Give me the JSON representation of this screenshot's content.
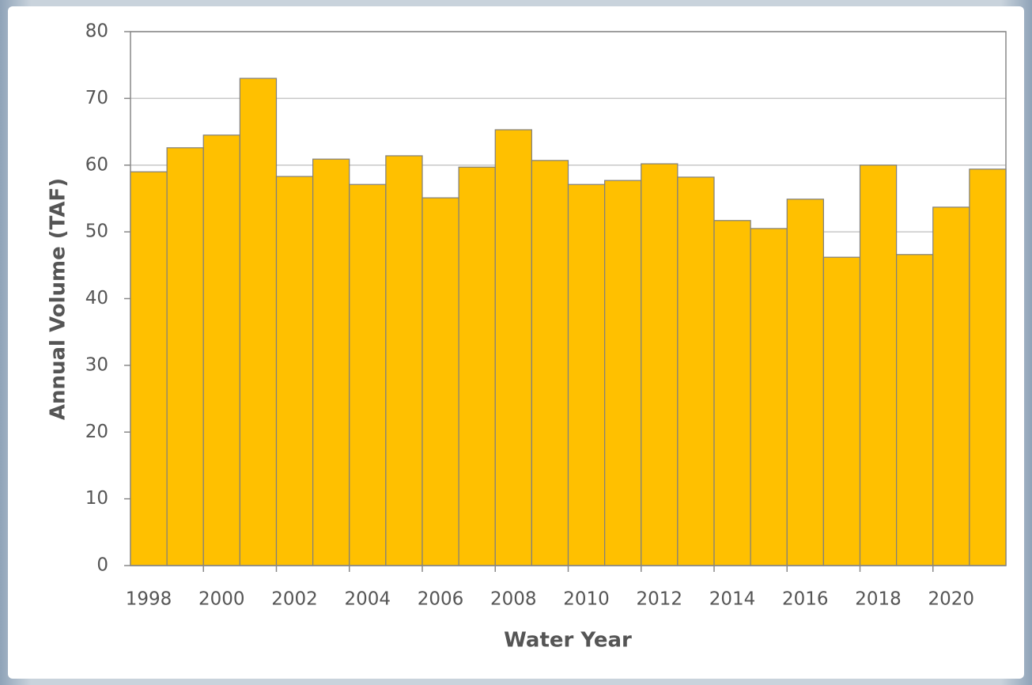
{
  "chart_data": {
    "type": "bar",
    "x_label": "Water Year",
    "y_label": "Annual Volume (TAF)",
    "categories": [
      "1998",
      null,
      "2000",
      null,
      "2002",
      null,
      "2004",
      null,
      "2006",
      null,
      "2008",
      null,
      "2010",
      null,
      "2012",
      null,
      "2014",
      null,
      "2016",
      null,
      "2018",
      null,
      "2020",
      null
    ],
    "values": [
      59.0,
      62.6,
      64.5,
      73.0,
      58.3,
      60.9,
      57.1,
      61.4,
      55.1,
      59.7,
      65.3,
      60.7,
      57.1,
      57.7,
      60.2,
      58.2,
      51.7,
      50.5,
      54.9,
      46.2,
      60.0,
      46.6,
      53.7,
      59.4
    ],
    "color": "#ffc000",
    "ylim": [
      0,
      80
    ],
    "yticks": [
      0,
      10,
      20,
      30,
      40,
      50,
      60,
      70,
      80
    ],
    "grid": true
  }
}
